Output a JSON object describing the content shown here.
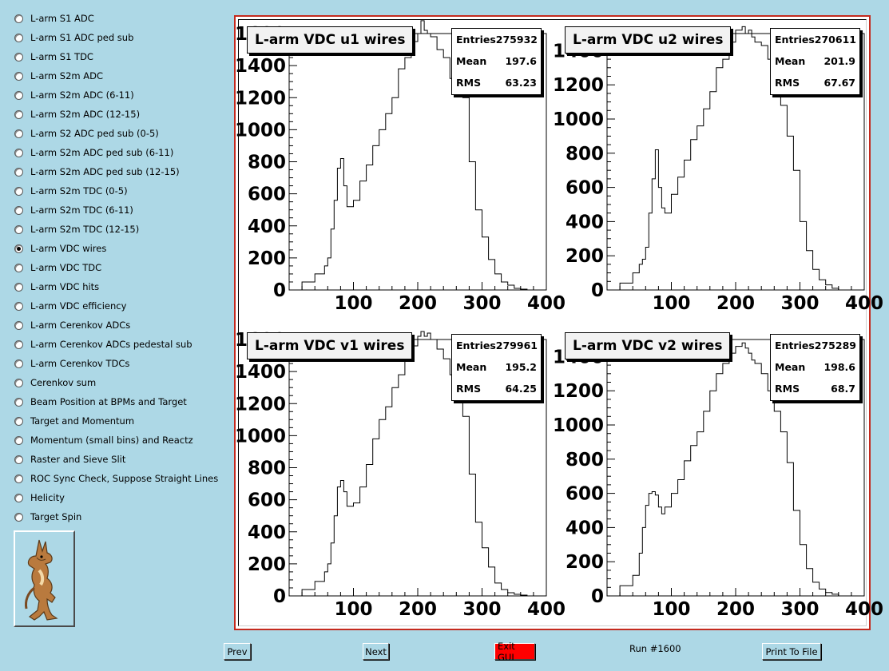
{
  "sidebar": {
    "items": [
      {
        "label": "L-arm S1 ADC",
        "selected": false
      },
      {
        "label": "L-arm S1 ADC ped sub",
        "selected": false
      },
      {
        "label": "L-arm S1 TDC",
        "selected": false
      },
      {
        "label": "L-arm S2m ADC",
        "selected": false
      },
      {
        "label": "L-arm S2m ADC (6-11)",
        "selected": false
      },
      {
        "label": "L-arm S2m ADC (12-15)",
        "selected": false
      },
      {
        "label": "L-arm S2 ADC ped sub (0-5)",
        "selected": false
      },
      {
        "label": "L-arm S2m ADC ped sub (6-11)",
        "selected": false
      },
      {
        "label": "L-arm S2m ADC ped sub (12-15)",
        "selected": false
      },
      {
        "label": "L-arm S2m TDC (0-5)",
        "selected": false
      },
      {
        "label": "L-arm S2m TDC (6-11)",
        "selected": false
      },
      {
        "label": "L-arm S2m TDC (12-15)",
        "selected": false
      },
      {
        "label": "L-arm VDC wires",
        "selected": true
      },
      {
        "label": "L-arm VDC TDC",
        "selected": false
      },
      {
        "label": "L-arm VDC hits",
        "selected": false
      },
      {
        "label": "L-arm VDC efficiency",
        "selected": false
      },
      {
        "label": "L-arm Cerenkov ADCs",
        "selected": false
      },
      {
        "label": "L-arm Cerenkov ADCs pedestal sub",
        "selected": false
      },
      {
        "label": "L-arm Cerenkov TDCs",
        "selected": false
      },
      {
        "label": "Cerenkov sum",
        "selected": false
      },
      {
        "label": "Beam Position at BPMs and Target",
        "selected": false
      },
      {
        "label": "Target and Momentum",
        "selected": false
      },
      {
        "label": "Momentum (small bins) and Reactz",
        "selected": false
      },
      {
        "label": "Raster and Sieve Slit",
        "selected": false
      },
      {
        "label": "ROC Sync Check, Suppose Straight Lines",
        "selected": false
      },
      {
        "label": "Helicity",
        "selected": false
      },
      {
        "label": "Target Spin",
        "selected": false
      }
    ],
    "logo_icon": "coyote-logo-icon"
  },
  "stats_labels": {
    "entries": "Entries",
    "mean": "Mean",
    "rms": "RMS"
  },
  "chart_data": [
    {
      "type": "histogram",
      "title": "L-arm VDC u1 wires",
      "stats": {
        "entries": "275932",
        "mean": "197.6",
        "rms": "63.23"
      },
      "xlim": [
        0,
        400
      ],
      "ylim": [
        0,
        1600
      ],
      "x_ticks": [
        "100",
        "200",
        "300",
        "400"
      ],
      "y_ticks": [
        "0",
        "200",
        "400",
        "600",
        "800",
        "1000",
        "1200",
        "1400",
        "1600"
      ],
      "x": [
        0,
        20,
        40,
        55,
        60,
        65,
        70,
        75,
        80,
        85,
        90,
        100,
        110,
        120,
        130,
        140,
        150,
        160,
        170,
        180,
        190,
        200,
        205,
        210,
        215,
        220,
        230,
        240,
        250,
        260,
        270,
        280,
        290,
        300,
        310,
        320,
        330,
        340,
        350,
        360,
        370
      ],
      "values": [
        0,
        50,
        100,
        150,
        200,
        380,
        560,
        760,
        820,
        650,
        520,
        560,
        680,
        780,
        900,
        1000,
        1100,
        1200,
        1380,
        1450,
        1550,
        1600,
        1680,
        1620,
        1600,
        1580,
        1500,
        1450,
        1320,
        1260,
        1200,
        800,
        500,
        330,
        190,
        100,
        50,
        30,
        10,
        5,
        0
      ]
    },
    {
      "type": "histogram",
      "title": "L-arm VDC u2 wires",
      "stats": {
        "entries": "270611",
        "mean": "201.9",
        "rms": "67.67"
      },
      "xlim": [
        0,
        400
      ],
      "ylim": [
        0,
        1500
      ],
      "x_ticks": [
        "100",
        "200",
        "300",
        "400"
      ],
      "y_ticks": [
        "0",
        "200",
        "400",
        "600",
        "800",
        "1000",
        "1200",
        "1400"
      ],
      "x": [
        0,
        20,
        40,
        50,
        55,
        60,
        65,
        70,
        75,
        80,
        85,
        90,
        100,
        110,
        120,
        130,
        140,
        150,
        160,
        170,
        180,
        190,
        200,
        210,
        215,
        220,
        225,
        230,
        240,
        250,
        260,
        270,
        280,
        290,
        300,
        310,
        320,
        330,
        340,
        350,
        360
      ],
      "values": [
        0,
        40,
        100,
        150,
        180,
        250,
        450,
        650,
        820,
        600,
        480,
        450,
        560,
        660,
        760,
        880,
        960,
        1060,
        1160,
        1300,
        1350,
        1450,
        1520,
        1540,
        1500,
        1520,
        1480,
        1450,
        1430,
        1350,
        1200,
        1080,
        900,
        700,
        400,
        230,
        120,
        60,
        30,
        10,
        0
      ]
    },
    {
      "type": "histogram",
      "title": "L-arm VDC v1 wires",
      "stats": {
        "entries": "279961",
        "mean": "195.2",
        "rms": "64.25"
      },
      "xlim": [
        0,
        400
      ],
      "ylim": [
        0,
        1600
      ],
      "x_ticks": [
        "100",
        "200",
        "300",
        "400"
      ],
      "y_ticks": [
        "0",
        "200",
        "400",
        "600",
        "800",
        "1000",
        "1200",
        "1400",
        "1600"
      ],
      "x": [
        0,
        20,
        40,
        55,
        60,
        65,
        70,
        75,
        80,
        85,
        90,
        100,
        110,
        120,
        130,
        140,
        150,
        160,
        170,
        180,
        190,
        200,
        205,
        210,
        215,
        220,
        230,
        240,
        250,
        260,
        270,
        280,
        290,
        300,
        310,
        320,
        330,
        340,
        350,
        360,
        370
      ],
      "values": [
        0,
        40,
        90,
        150,
        200,
        330,
        500,
        680,
        720,
        650,
        560,
        580,
        680,
        820,
        980,
        1100,
        1180,
        1300,
        1380,
        1480,
        1560,
        1620,
        1650,
        1620,
        1640,
        1600,
        1540,
        1480,
        1380,
        1280,
        1120,
        760,
        460,
        300,
        180,
        80,
        40,
        20,
        10,
        5,
        0
      ]
    },
    {
      "type": "histogram",
      "title": "L-arm VDC v2 wires",
      "stats": {
        "entries": "275289",
        "mean": "198.6",
        "rms": "68.7"
      },
      "xlim": [
        0,
        400
      ],
      "ylim": [
        0,
        1500
      ],
      "x_ticks": [
        "100",
        "200",
        "300",
        "400"
      ],
      "y_ticks": [
        "0",
        "200",
        "400",
        "600",
        "800",
        "1000",
        "1200",
        "1400"
      ],
      "x": [
        0,
        20,
        40,
        50,
        55,
        60,
        65,
        70,
        75,
        80,
        85,
        90,
        100,
        110,
        120,
        130,
        140,
        150,
        160,
        170,
        180,
        190,
        200,
        210,
        215,
        220,
        225,
        230,
        240,
        250,
        260,
        270,
        280,
        290,
        300,
        310,
        320,
        330,
        340,
        350,
        360
      ],
      "values": [
        0,
        60,
        120,
        250,
        400,
        530,
        600,
        610,
        590,
        520,
        480,
        520,
        600,
        680,
        790,
        880,
        960,
        1080,
        1200,
        1300,
        1360,
        1420,
        1460,
        1480,
        1450,
        1420,
        1380,
        1360,
        1300,
        1200,
        1080,
        960,
        780,
        500,
        300,
        160,
        80,
        40,
        20,
        10,
        0
      ]
    }
  ],
  "buttons": {
    "prev": "Prev",
    "next": "Next",
    "exit": "Exit GUI",
    "print": "Print To File",
    "exit_color": "#ff0000"
  },
  "run_label": "Run #1600"
}
